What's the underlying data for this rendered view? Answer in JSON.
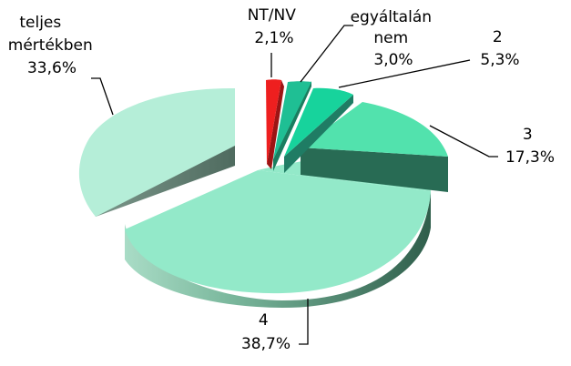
{
  "chart_data": {
    "type": "pie",
    "style": "3d-exploded",
    "title": "",
    "slices": [
      {
        "name": "NT/NV",
        "value": 2.1,
        "label_lines": [
          "NT/NV",
          "2,1%"
        ],
        "color": "#ee1f1f"
      },
      {
        "name": "egyáltalán nem",
        "value": 3.0,
        "label_lines": [
          "egyáltalán",
          "nem",
          "3,0%"
        ],
        "color": "#1fbf94"
      },
      {
        "name": "2",
        "value": 5.3,
        "label_lines": [
          "2",
          "5,3%"
        ],
        "color": "#17d39c"
      },
      {
        "name": "3",
        "value": 17.3,
        "label_lines": [
          "3",
          "17,3%"
        ],
        "color": "#52e2ad"
      },
      {
        "name": "4",
        "value": 38.7,
        "label_lines": [
          "4",
          "38,7%"
        ],
        "color": "#93e9c9"
      },
      {
        "name": "teljes mértékben",
        "value": 33.6,
        "label_lines": [
          "teljes",
          "mértékben",
          "33,6%"
        ],
        "color": "#b5eed8"
      }
    ],
    "legend": "none",
    "grid": false
  }
}
